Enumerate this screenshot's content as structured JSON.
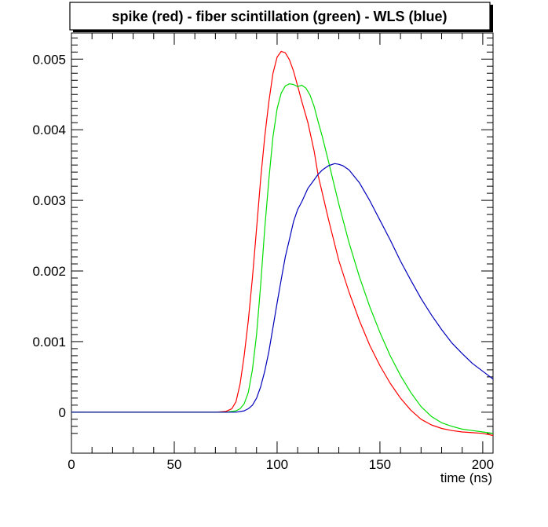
{
  "chart_data": {
    "type": "line",
    "title": "spike (red) - fiber scintillation (green) - WLS (blue)",
    "xlabel": "time (ns)",
    "ylabel": "",
    "xlim": [
      0,
      205
    ],
    "ylim": [
      -0.00058,
      0.00537
    ],
    "x_ticks": [
      0,
      50,
      100,
      150,
      200
    ],
    "x_tick_labels": [
      "0",
      "50",
      "100",
      "150",
      "200"
    ],
    "y_ticks": [
      0,
      0.001,
      0.002,
      0.003,
      0.004,
      0.005
    ],
    "y_tick_labels": [
      "0",
      "0.001",
      "0.002",
      "0.003",
      "0.004",
      "0.005"
    ],
    "grid": false,
    "legend": "none",
    "series": [
      {
        "color": "#ff0000",
        "x": [
          0,
          70,
          75,
          78,
          80,
          82,
          84,
          86,
          88,
          90,
          92,
          94,
          96,
          98,
          100,
          102,
          104,
          106,
          108,
          110,
          112,
          115,
          118,
          120,
          122,
          125,
          130,
          135,
          140,
          145,
          150,
          155,
          160,
          165,
          170,
          175,
          180,
          185,
          190,
          195,
          200,
          205
        ],
        "y": [
          0,
          0,
          1e-05,
          5e-05,
          0.00015,
          0.0004,
          0.0008,
          0.0013,
          0.0019,
          0.0026,
          0.0033,
          0.0039,
          0.0044,
          0.0048,
          0.00503,
          0.00511,
          0.00509,
          0.00499,
          0.00483,
          0.00462,
          0.0044,
          0.0041,
          0.0037,
          0.00335,
          0.0031,
          0.00273,
          0.00215,
          0.0017,
          0.0013,
          0.00095,
          0.00066,
          0.00041,
          0.0002,
          3e-05,
          -0.0001,
          -0.00018,
          -0.00023,
          -0.00026,
          -0.00028,
          -0.00029,
          -0.0003,
          -0.00033
        ]
      },
      {
        "color": "#00dd00",
        "x": [
          0,
          75,
          80,
          82,
          84,
          86,
          88,
          90,
          92,
          94,
          96,
          98,
          100,
          102,
          104,
          106,
          108,
          110,
          112,
          114,
          116,
          118,
          120,
          122,
          125,
          130,
          135,
          140,
          145,
          150,
          155,
          160,
          165,
          170,
          175,
          180,
          185,
          190,
          195,
          200,
          205
        ],
        "y": [
          0,
          0,
          2e-05,
          5e-05,
          0.00012,
          0.00028,
          0.0006,
          0.0011,
          0.0018,
          0.0026,
          0.0033,
          0.0039,
          0.0043,
          0.00452,
          0.00462,
          0.00465,
          0.00464,
          0.00461,
          0.00463,
          0.00459,
          0.00449,
          0.00433,
          0.00411,
          0.0039,
          0.00355,
          0.00295,
          0.0024,
          0.00192,
          0.0015,
          0.00113,
          0.0008,
          0.00052,
          0.00028,
          8e-05,
          -6e-05,
          -0.00015,
          -0.0002,
          -0.00024,
          -0.00026,
          -0.00028,
          -0.0003
        ]
      },
      {
        "color": "#0000bb",
        "x": [
          0,
          80,
          84,
          86,
          88,
          90,
          92,
          94,
          96,
          98,
          100,
          102,
          104,
          106,
          108,
          110,
          112,
          115,
          118,
          120,
          122,
          125,
          128,
          130,
          132,
          135,
          140,
          145,
          150,
          155,
          160,
          165,
          170,
          175,
          180,
          185,
          190,
          195,
          200,
          205
        ],
        "y": [
          0,
          0,
          2e-05,
          5e-05,
          0.0001,
          0.0002,
          0.00036,
          0.00058,
          0.00086,
          0.0012,
          0.00155,
          0.00188,
          0.0022,
          0.00245,
          0.0027,
          0.00287,
          0.00298,
          0.00317,
          0.00329,
          0.00337,
          0.00343,
          0.00349,
          0.00352,
          0.00351,
          0.00349,
          0.00343,
          0.00325,
          0.003,
          0.00272,
          0.00244,
          0.00214,
          0.00187,
          0.00161,
          0.00138,
          0.00117,
          0.00098,
          0.00083,
          0.00069,
          0.00058,
          0.00047
        ]
      }
    ]
  }
}
